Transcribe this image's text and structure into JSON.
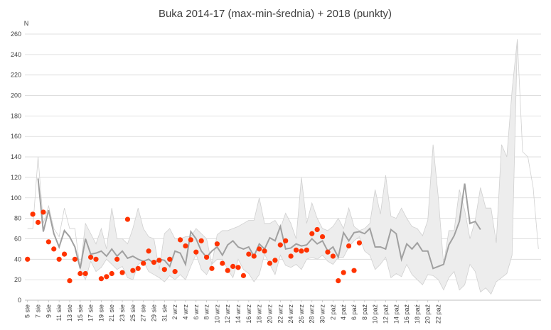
{
  "chart_data": {
    "type": "line",
    "title": "Buka 2014-17 (max-min-średnia) + 2018 (punkty)",
    "ylabel": "N",
    "xlabel": "",
    "ylim": [
      0,
      260
    ],
    "yticks": [
      0,
      20,
      40,
      60,
      80,
      100,
      120,
      140,
      160,
      180,
      200,
      220,
      240,
      260
    ],
    "grid": true,
    "legend": "none",
    "colors": {
      "band": "#ededed",
      "band_edge": "#d0d0d0",
      "mean": "#a0a0a0",
      "points": "#ff3300",
      "grid": "#d9d9d9"
    },
    "x_tick_labels": [
      "5 sie",
      "7 sie",
      "9 sie",
      "11 sie",
      "13 sie",
      "15 sie",
      "17 sie",
      "19 sie",
      "21 sie",
      "23 sie",
      "25 sie",
      "27 sie",
      "29 sie",
      "31 sie",
      "2 wrz",
      "4 wrz",
      "6 wrz",
      "8 wrz",
      "10 wrz",
      "12 wrz",
      "14 wrz",
      "16 wrz",
      "18 wrz",
      "20 wrz",
      "22 wrz",
      "24 wrz",
      "26 wrz",
      "28 wrz",
      "30 wrz",
      "2 paź",
      "4 paź",
      "6 paź",
      "8 paź",
      "10 paź",
      "12 paź",
      "14 paź",
      "16 paź",
      "18 paź",
      "20 paź",
      "22 paź"
    ],
    "series": [
      {
        "role": "max",
        "values": [
          70,
          70,
          140,
          75,
          92,
          70,
          62,
          90,
          70,
          70,
          30,
          75,
          65,
          55,
          70,
          50,
          90,
          60,
          60,
          55,
          70,
          90,
          70,
          62,
          60,
          30,
          65,
          70,
          60,
          60,
          62,
          62,
          70,
          65,
          60,
          35,
          64,
          68,
          68,
          70,
          72,
          75,
          78,
          78,
          100,
          75,
          75,
          78,
          70,
          85,
          75,
          60,
          120,
          75,
          95,
          80,
          70,
          68,
          72,
          80,
          70,
          90,
          72,
          68,
          70,
          75,
          108,
          84,
          122,
          82,
          80,
          90,
          80,
          72,
          70,
          63,
          78,
          152,
          100,
          35,
          68,
          68,
          108,
          88,
          60,
          78,
          110,
          90,
          90,
          56,
          152,
          140,
          205,
          255,
          145,
          140,
          110,
          50
        ]
      },
      {
        "role": "mean",
        "values": [
          null,
          null,
          119,
          67,
          88,
          65,
          52,
          68,
          62,
          52,
          31,
          60,
          45,
          46,
          48,
          43,
          50,
          43,
          48,
          41,
          43,
          40,
          38,
          40,
          36,
          40,
          39,
          33,
          48,
          46,
          35,
          67,
          60,
          48,
          42,
          48,
          52,
          44,
          54,
          58,
          52,
          50,
          52,
          43,
          55,
          50,
          61,
          58,
          72,
          50,
          51,
          55,
          53,
          54,
          60,
          55,
          58,
          48,
          52,
          42,
          66,
          58,
          66,
          67,
          65,
          70,
          52,
          52,
          50,
          69,
          65,
          40,
          55,
          50,
          56,
          48,
          48,
          31,
          33,
          35,
          54,
          63,
          77,
          114,
          75,
          77,
          69,
          null
        ]
      },
      {
        "role": "min",
        "values": [
          null,
          null,
          null,
          null,
          null,
          null,
          null,
          null,
          null,
          null,
          null,
          20,
          38,
          28,
          32,
          40,
          35,
          30,
          33,
          22,
          20,
          35,
          38,
          28,
          25,
          22,
          18,
          24,
          20,
          25,
          20,
          33,
          45,
          30,
          25,
          35,
          40,
          40,
          30,
          22,
          40,
          30,
          26,
          18,
          25,
          45,
          35,
          25,
          44,
          34,
          32,
          35,
          30,
          40,
          42,
          40,
          44,
          38,
          35,
          42,
          42,
          52,
          58,
          62,
          48,
          44,
          30,
          35,
          42,
          22,
          26,
          23,
          35,
          25,
          20,
          15,
          25,
          24,
          20,
          10,
          22,
          28,
          10,
          15,
          35,
          28,
          8,
          12,
          6,
          18,
          22,
          26,
          44
        ]
      },
      {
        "role": "points_2018",
        "x": [
          0,
          1,
          2,
          3,
          4,
          5,
          6,
          7,
          8,
          9,
          10,
          11,
          12,
          13,
          14,
          15,
          16,
          17,
          18,
          19,
          20,
          21,
          22,
          23,
          24,
          25,
          26,
          27,
          28,
          29,
          30,
          31,
          32,
          33,
          34,
          35,
          36,
          37,
          38,
          39,
          40,
          41,
          42,
          43,
          44,
          45,
          46,
          47,
          48,
          49,
          50,
          51,
          52,
          53,
          54,
          55,
          56,
          57,
          58,
          59,
          60,
          61,
          62,
          63,
          64,
          65,
          66,
          67,
          68,
          69,
          70,
          71,
          72,
          73,
          74,
          75,
          76,
          77,
          78,
          79,
          80,
          81,
          82,
          83,
          84,
          85,
          86,
          87,
          88,
          89,
          90,
          91,
          92,
          93,
          94,
          95,
          96,
          97
        ],
        "values": [
          40,
          84,
          76,
          86,
          57,
          50,
          40,
          45,
          19,
          40,
          26,
          26,
          42,
          40,
          21,
          23,
          26,
          40,
          27,
          79,
          29,
          31,
          36,
          48,
          37,
          39,
          30,
          40,
          28,
          59,
          53,
          59,
          47,
          58,
          42,
          31,
          55,
          36,
          29,
          33,
          32,
          24,
          45,
          43,
          50,
          48,
          36,
          39,
          54,
          58,
          43,
          49,
          48,
          49,
          65,
          69,
          62,
          47,
          43,
          19,
          27,
          53,
          29,
          56,
          null,
          null,
          null,
          null,
          null,
          null,
          null,
          null,
          null,
          null,
          null,
          null,
          null,
          null,
          null,
          null,
          null,
          null,
          null,
          null,
          null,
          null,
          null,
          null,
          null,
          null,
          null,
          null,
          null,
          null,
          null,
          null,
          null,
          null
        ]
      }
    ]
  }
}
